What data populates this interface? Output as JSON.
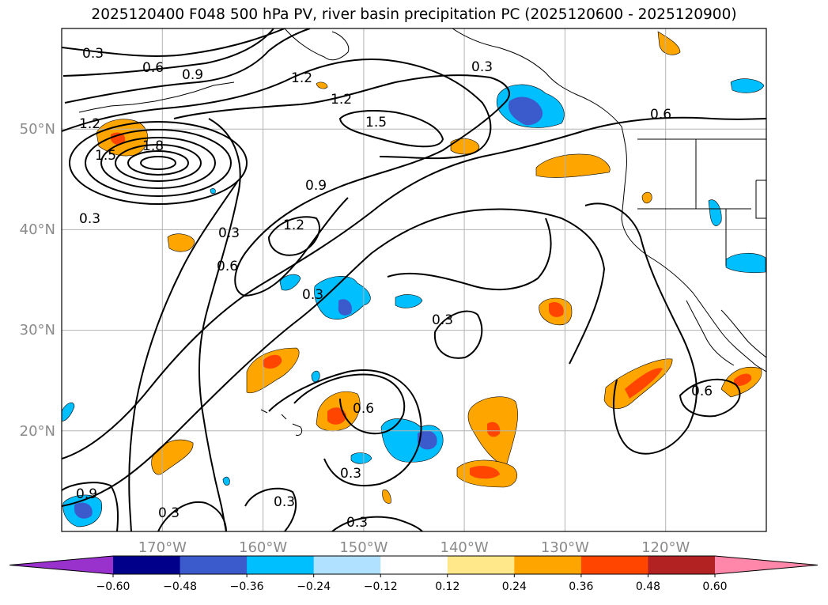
{
  "title": "2025120400 F048 500 hPa PV, river basin precipitation PC (2025120600 - 2025120900)",
  "map": {
    "projection": "equirectangular",
    "lon_range": [
      -180,
      -110
    ],
    "lat_range": [
      10,
      60
    ],
    "gridlines": true,
    "lon_ticks": [
      "170°W",
      "160°W",
      "150°W",
      "140°W",
      "130°W",
      "120°W"
    ],
    "lat_ticks": [
      "50°N",
      "40°N",
      "30°N",
      "20°N"
    ],
    "contour_labels": [
      "0.3",
      "0.6",
      "0.9",
      "1.2",
      "1.5",
      "1.8"
    ]
  },
  "colorbar": {
    "extend": "both",
    "levels": [
      "-0.60",
      "-0.48",
      "-0.36",
      "-0.24",
      "-0.12",
      "0.12",
      "0.24",
      "0.36",
      "0.48",
      "0.60"
    ],
    "colors": {
      "under": "#9932cc",
      "bins": [
        "#00008b",
        "#3b5bcd",
        "#00bfff",
        "#b0e2ff",
        "#ffffff",
        "#ffe88a",
        "#ffa500",
        "#ff4500",
        "#b22222"
      ],
      "over": "#ff88aa"
    }
  }
}
